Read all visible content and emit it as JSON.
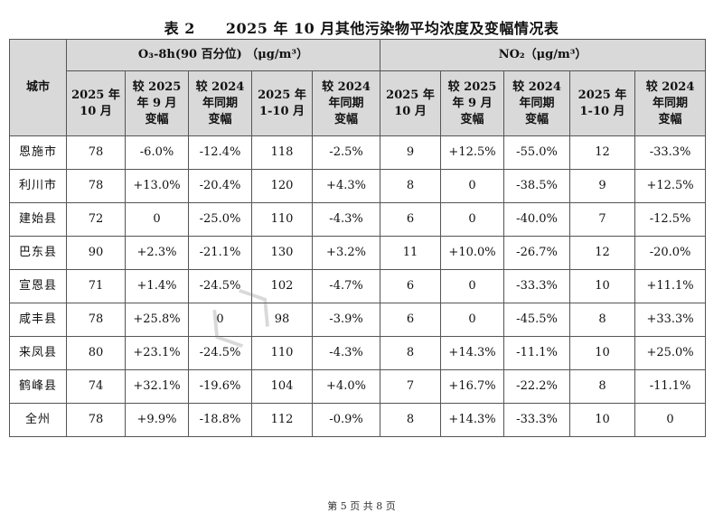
{
  "title": {
    "num": "表 2",
    "text": "2025 年 10 月其他污染物平均浓度及变幅情况表"
  },
  "header": {
    "city": "城市",
    "o3_group": "O₃-8h(90 百分位) （μg/m³）",
    "no2_group": "NO₂（μg/m³）",
    "o3_cols": [
      "2025 年\n10 月",
      "较 2025\n年 9 月\n变幅",
      "较 2024\n年同期\n变幅",
      "2025 年\n1-10 月",
      "较 2024\n年同期\n变幅"
    ],
    "no2_cols": [
      "2025 年\n10 月",
      "较 2025\n年 9 月\n变幅",
      "较 2024\n年同期\n变幅",
      "2025 年\n1-10 月",
      "较 2024\n年同期\n变幅"
    ]
  },
  "rows": [
    {
      "city": "恩施市",
      "o3": [
        "78",
        "-6.0%",
        "-12.4%",
        "118",
        "-2.5%"
      ],
      "no2": [
        "9",
        "+12.5%",
        "-55.0%",
        "12",
        "-33.3%"
      ]
    },
    {
      "city": "利川市",
      "o3": [
        "78",
        "+13.0%",
        "-20.4%",
        "120",
        "+4.3%"
      ],
      "no2": [
        "8",
        "0",
        "-38.5%",
        "9",
        "+12.5%"
      ]
    },
    {
      "city": "建始县",
      "o3": [
        "72",
        "0",
        "-25.0%",
        "110",
        "-4.3%"
      ],
      "no2": [
        "6",
        "0",
        "-40.0%",
        "7",
        "-12.5%"
      ]
    },
    {
      "city": "巴东县",
      "o3": [
        "90",
        "+2.3%",
        "-21.1%",
        "130",
        "+3.2%"
      ],
      "no2": [
        "11",
        "+10.0%",
        "-26.7%",
        "12",
        "-20.0%"
      ]
    },
    {
      "city": "宣恩县",
      "o3": [
        "71",
        "+1.4%",
        "-24.5%",
        "102",
        "-4.7%"
      ],
      "no2": [
        "6",
        "0",
        "-33.3%",
        "10",
        "+11.1%"
      ]
    },
    {
      "city": "咸丰县",
      "o3": [
        "78",
        "+25.8%",
        "0",
        "98",
        "-3.9%"
      ],
      "no2": [
        "6",
        "0",
        "-45.5%",
        "8",
        "+33.3%"
      ]
    },
    {
      "city": "来凤县",
      "o3": [
        "80",
        "+23.1%",
        "-24.5%",
        "110",
        "-4.3%"
      ],
      "no2": [
        "8",
        "+14.3%",
        "-11.1%",
        "10",
        "+25.0%"
      ]
    },
    {
      "city": "鹤峰县",
      "o3": [
        "74",
        "+32.1%",
        "-19.6%",
        "104",
        "+4.0%"
      ],
      "no2": [
        "7",
        "+16.7%",
        "-22.2%",
        "8",
        "-11.1%"
      ]
    },
    {
      "city": "全州",
      "o3": [
        "78",
        "+9.9%",
        "-18.8%",
        "112",
        "-0.9%"
      ],
      "no2": [
        "8",
        "+14.3%",
        "-33.3%",
        "10",
        "0"
      ]
    }
  ],
  "footer": "第 5 页 共 8 页"
}
